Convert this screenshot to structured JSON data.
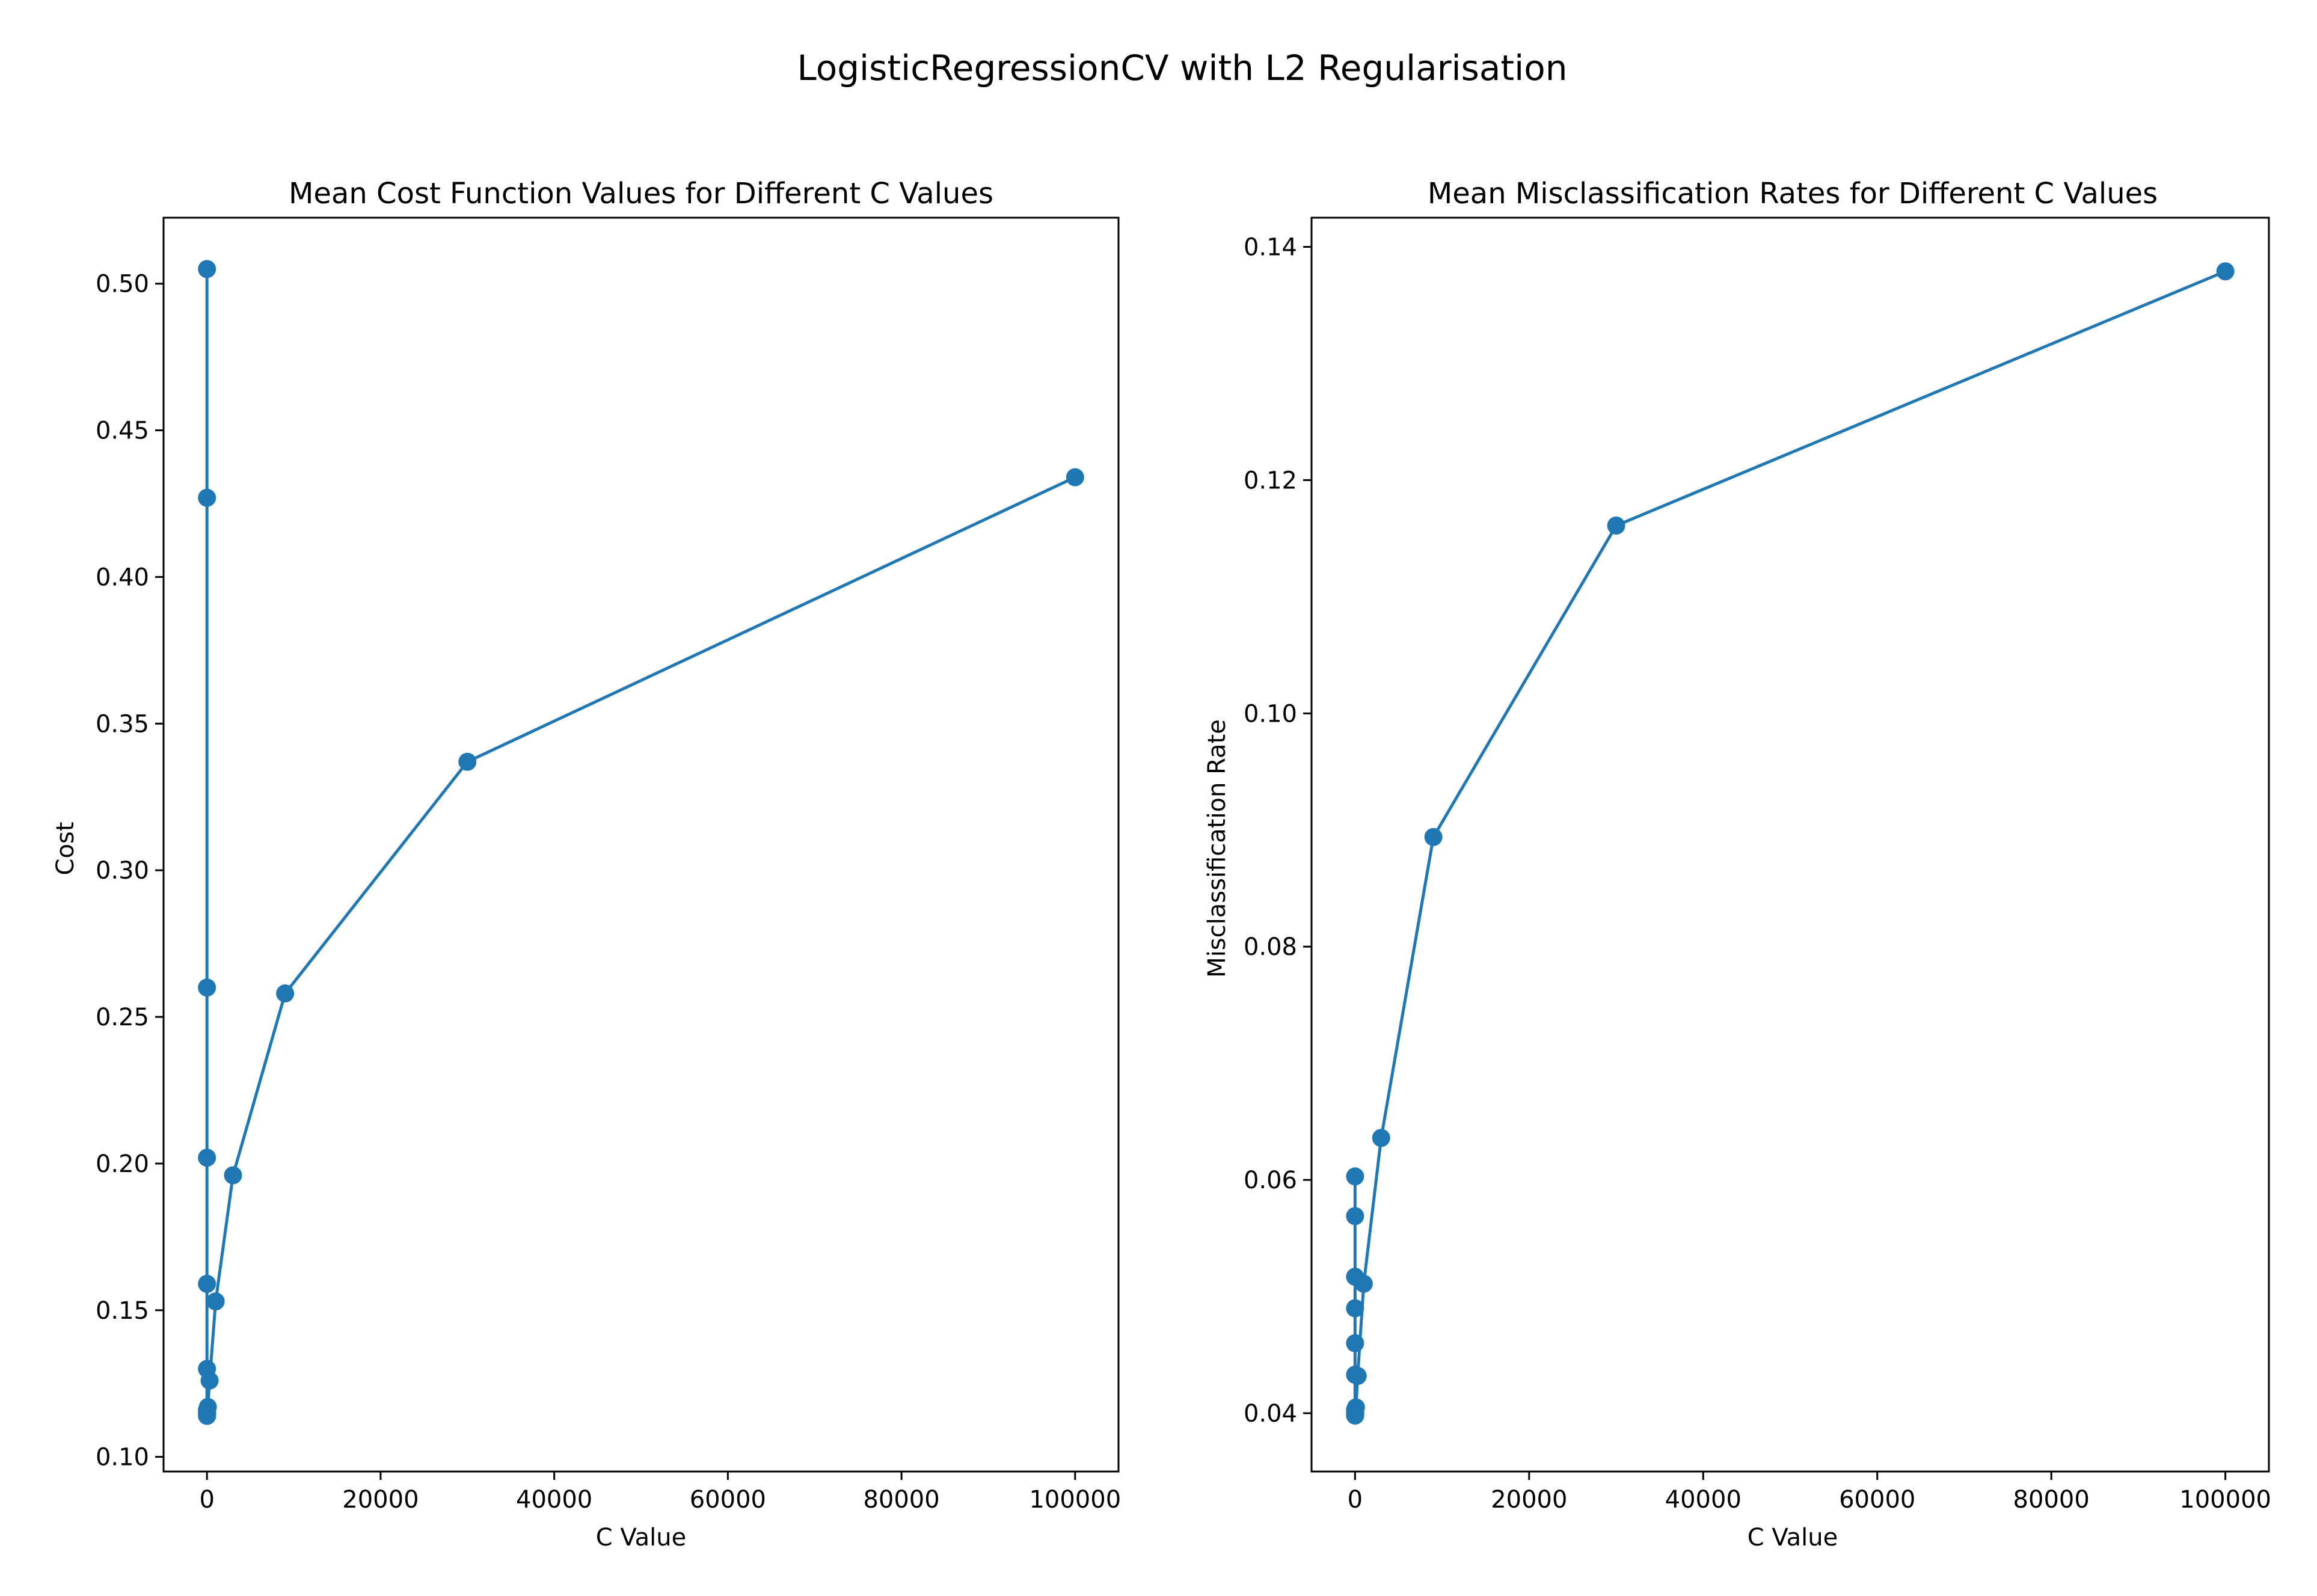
{
  "figure": {
    "suptitle": "LogisticRegressionCV with L2 Regularisation",
    "line_color": "#1f77b4"
  },
  "chart_data": [
    {
      "type": "line",
      "title": "Mean Cost Function Values for Different C Values",
      "xlabel": "C Value",
      "ylabel": "Cost",
      "xlim": [
        -5000,
        105000
      ],
      "ylim": [
        0.095,
        0.5225
      ],
      "xticks": [
        0,
        20000,
        40000,
        60000,
        80000,
        100000
      ],
      "yticks": [
        "0.10",
        "0.15",
        "0.20",
        "0.25",
        "0.30",
        "0.35",
        "0.40",
        "0.45",
        "0.50"
      ],
      "grid": false,
      "marker": "circle",
      "series": [
        {
          "x": [
            0.0001,
            0.0003,
            0.001,
            0.003,
            0.01,
            0.03,
            0.1,
            0.3,
            1,
            3,
            10,
            30,
            100,
            300,
            1000,
            3000,
            9000,
            30000,
            100000
          ],
          "values": [
            0.505,
            0.427,
            0.26,
            0.202,
            0.159,
            0.13,
            0.116,
            0.115,
            0.115,
            0.114,
            0.114,
            0.115,
            0.117,
            0.126,
            0.153,
            0.196,
            0.258,
            0.337,
            0.434
          ]
        }
      ]
    },
    {
      "type": "line",
      "title": "Mean Misclassification Rates for Different C Values",
      "xlabel": "C Value",
      "ylabel": "Misclassification Rate",
      "xlim": [
        -5000,
        105000
      ],
      "ylim": [
        0.035,
        0.1425
      ],
      "xticks": [
        0,
        20000,
        40000,
        60000,
        80000,
        100000
      ],
      "yticks": [
        "0.04",
        "0.06",
        "0.08",
        "0.10",
        "0.12",
        "0.14"
      ],
      "grid": false,
      "marker": "circle",
      "series": [
        {
          "x": [
            0.0001,
            0.0003,
            0.001,
            0.003,
            0.01,
            0.03,
            0.1,
            0.3,
            1,
            3,
            10,
            30,
            100,
            300,
            1000,
            3000,
            9000,
            30000,
            100000
          ],
          "values": [
            0.0603,
            0.0569,
            0.0517,
            0.049,
            0.046,
            0.0433,
            0.0403,
            0.04,
            0.04,
            0.0398,
            0.0398,
            0.04,
            0.0405,
            0.0432,
            0.0511,
            0.0636,
            0.0894,
            0.1161,
            0.1379
          ]
        }
      ]
    }
  ]
}
